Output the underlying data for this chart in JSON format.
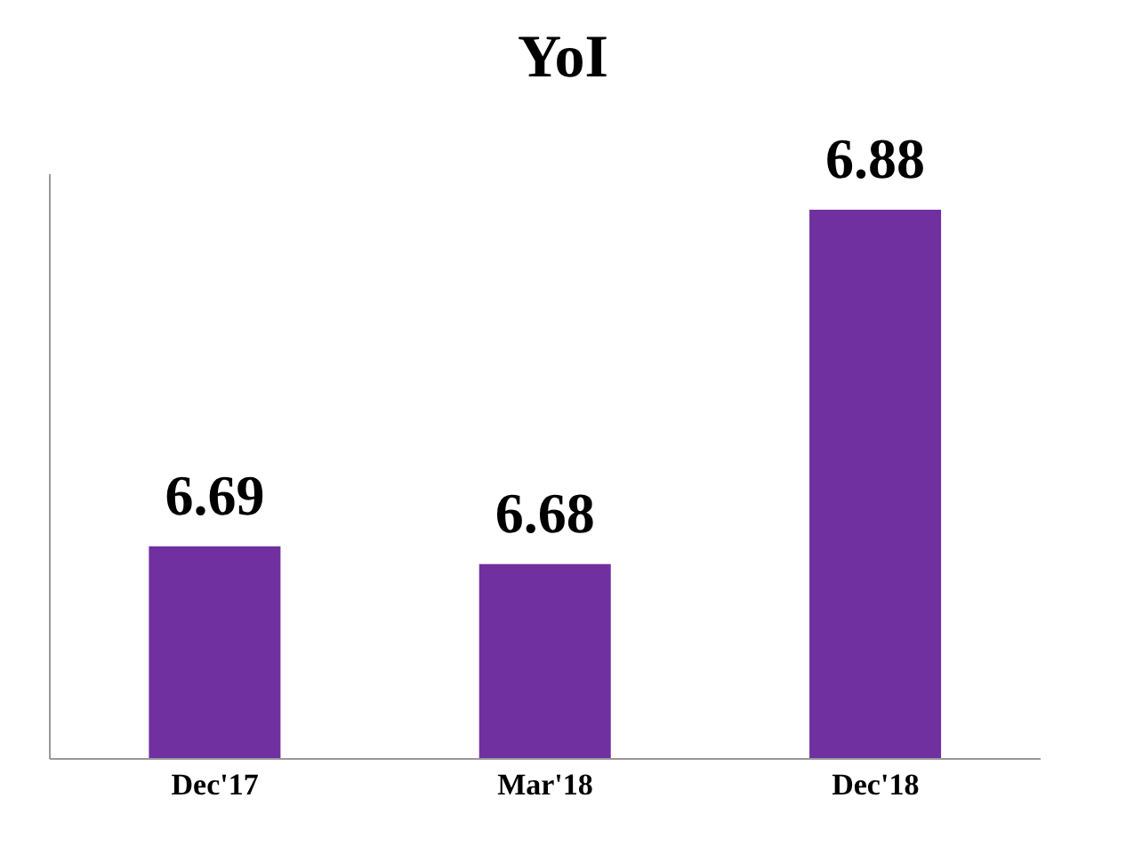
{
  "chart_data": {
    "type": "bar",
    "title": "YoI",
    "categories": [
      "Dec'17",
      "Mar'18",
      "Dec'18"
    ],
    "values": [
      6.69,
      6.68,
      6.88
    ],
    "color": "#7030a0",
    "data_labels": true,
    "ylim": [
      6.57,
      6.9
    ],
    "tick_labels": "x",
    "grid": false,
    "legend": false
  }
}
